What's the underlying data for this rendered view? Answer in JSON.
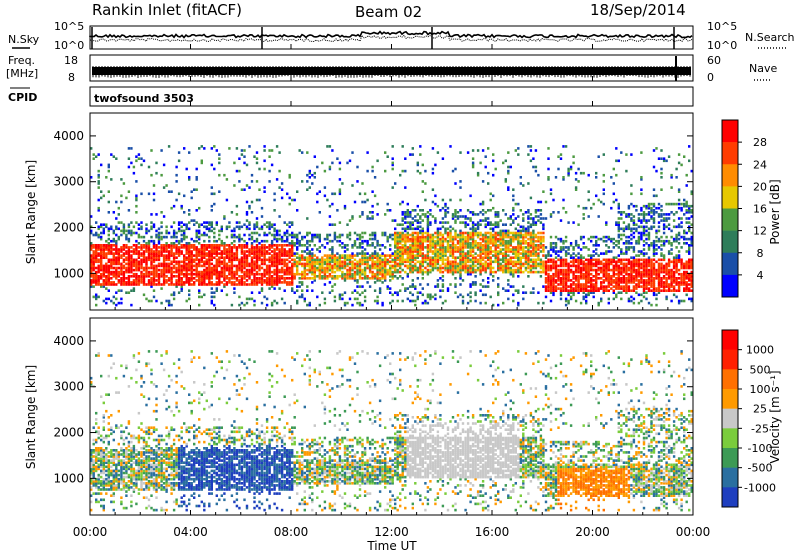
{
  "header": {
    "station": "Rankin Inlet (fitACF)",
    "beam": "Beam 02",
    "date": "18/Sep/2014"
  },
  "strip_labels": {
    "nsky": "N.Sky",
    "freq": "Freq.",
    "freq_unit": "[MHz]",
    "cpid": "CPID",
    "nsearch": "N.Search",
    "nave": "Nave"
  },
  "cpid_name": "twofsound 3503",
  "chart_data": [
    {
      "type": "line",
      "name": "noise",
      "ylabels_left": [
        "10^5",
        "10^0"
      ],
      "ylabels_right": [
        "10^5",
        "10^0"
      ],
      "x_range_hours": [
        0,
        24
      ]
    },
    {
      "type": "line",
      "name": "frequency",
      "ylabels_left": [
        "18",
        "8"
      ],
      "ylabels_right": [
        "60",
        "0"
      ],
      "x_range_hours": [
        0,
        24
      ]
    },
    {
      "type": "heatmap",
      "name": "power",
      "ylabel": "Slant Range [km]",
      "yticks": [
        1000,
        2000,
        3000,
        4000
      ],
      "ylim": [
        200,
        4500
      ],
      "colorbar_label": "Power [dB]",
      "colorbar_ticks": [
        "28",
        "24",
        "20",
        "16",
        "12",
        "8",
        "4"
      ],
      "colors": [
        "#0000ff",
        "#1a4fa8",
        "#2e7d5a",
        "#4c9a40",
        "#e6c800",
        "#ff8c00",
        "#ff3c00",
        "#ff0000"
      ]
    },
    {
      "type": "heatmap",
      "name": "velocity",
      "ylabel": "Slant Range [km]",
      "yticks": [
        1000,
        2000,
        3000,
        4000
      ],
      "ylim": [
        200,
        4500
      ],
      "colorbar_label": "Velocity [m s⁻¹]",
      "colorbar_ticks": [
        "1000",
        "500",
        "100",
        "25",
        "-25",
        "-100",
        "-500",
        "-1000"
      ],
      "colors": [
        "#1f3fbf",
        "#2a6fa0",
        "#3c9a55",
        "#7acc3c",
        "#c8c8c8",
        "#ff9a00",
        "#ff7000",
        "#ff2000",
        "#ff0000"
      ]
    }
  ],
  "xaxis": {
    "label": "Time UT",
    "ticks": [
      "00:00",
      "04:00",
      "08:00",
      "12:00",
      "16:00",
      "20:00",
      "00:00"
    ]
  }
}
